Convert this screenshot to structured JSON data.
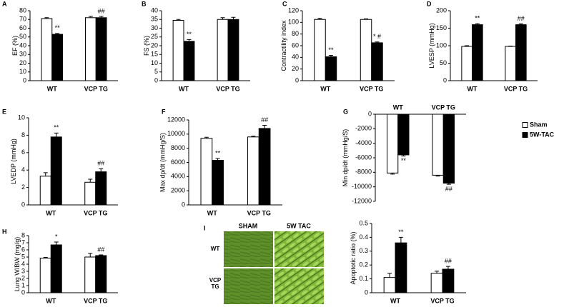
{
  "chart_data": [
    {
      "type": "bar",
      "label": "A",
      "ylabel": "EF (%)",
      "categories": [
        "WT",
        "VCP TG"
      ],
      "ylim": [
        0,
        80
      ],
      "yticks": [
        0,
        10,
        20,
        30,
        40,
        50,
        60,
        70,
        80
      ],
      "series": [
        {
          "color": "#ffffff",
          "values": [
            71,
            72
          ],
          "errors": [
            1,
            1.5
          ]
        },
        {
          "color": "#000000",
          "values": [
            53,
            72
          ],
          "errors": [
            1,
            1.5
          ],
          "annotations": [
            "**",
            "##"
          ]
        }
      ]
    },
    {
      "type": "bar",
      "label": "B",
      "ylabel": "FS (%)",
      "categories": [
        "WT",
        "VCP TG"
      ],
      "ylim": [
        0,
        40
      ],
      "yticks": [
        0,
        5,
        10,
        15,
        20,
        25,
        30,
        35,
        40
      ],
      "series": [
        {
          "color": "#ffffff",
          "values": [
            34.5,
            35
          ],
          "errors": [
            0.5,
            1
          ]
        },
        {
          "color": "#000000",
          "values": [
            22.5,
            35
          ],
          "errors": [
            1,
            1.2
          ],
          "annotations": [
            "**",
            null
          ]
        }
      ]
    },
    {
      "type": "bar",
      "label": "C",
      "ylabel": "Contractility index",
      "categories": [
        "WT",
        "VCP TG"
      ],
      "ylim": [
        0,
        120
      ],
      "yticks": [
        0,
        20,
        40,
        60,
        80,
        100,
        120
      ],
      "series": [
        {
          "color": "#ffffff",
          "values": [
            105,
            105
          ],
          "errors": [
            2,
            1
          ]
        },
        {
          "color": "#000000",
          "values": [
            41,
            65
          ],
          "errors": [
            2.5,
            1.5
          ],
          "annotations": [
            "**",
            "* #"
          ]
        }
      ]
    },
    {
      "type": "bar",
      "label": "D",
      "ylabel": "LVESP (mmHg)",
      "categories": [
        "WT",
        "VCP TG"
      ],
      "ylim": [
        0,
        200
      ],
      "yticks": [
        0,
        50,
        100,
        150,
        200
      ],
      "series": [
        {
          "color": "#ffffff",
          "values": [
            98,
            98
          ],
          "errors": [
            2,
            1
          ]
        },
        {
          "color": "#000000",
          "values": [
            160,
            160
          ],
          "errors": [
            3,
            2.5
          ],
          "annotations": [
            "**",
            "##"
          ]
        }
      ]
    },
    {
      "type": "bar",
      "label": "E",
      "ylabel": "LVEDP (mmHg)",
      "categories": [
        "WT",
        "VCP TG"
      ],
      "ylim": [
        0,
        10
      ],
      "yticks": [
        0,
        2,
        4,
        6,
        8,
        10
      ],
      "series": [
        {
          "color": "#ffffff",
          "values": [
            3.3,
            2.6
          ],
          "errors": [
            0.4,
            0.35
          ]
        },
        {
          "color": "#000000",
          "values": [
            7.8,
            3.8
          ],
          "errors": [
            0.45,
            0.35
          ],
          "annotations": [
            "**",
            "##"
          ]
        }
      ]
    },
    {
      "type": "bar",
      "label": "F",
      "ylabel": "Max dp/dt (mmHg/S)",
      "categories": [
        "WT",
        "VCP TG"
      ],
      "ylim": [
        0,
        12000
      ],
      "yticks": [
        0,
        2000,
        4000,
        6000,
        8000,
        10000,
        12000
      ],
      "series": [
        {
          "color": "#ffffff",
          "values": [
            9400,
            9600
          ],
          "errors": [
            150,
            100
          ]
        },
        {
          "color": "#000000",
          "values": [
            6300,
            10800
          ],
          "errors": [
            250,
            450
          ],
          "annotations": [
            "**",
            "##"
          ]
        }
      ]
    },
    {
      "type": "bar",
      "label": "G",
      "ylabel": "Min dp/dt (mmHg/S)",
      "categories": [
        "WT",
        "VCP TG"
      ],
      "ylim": [
        -12000,
        0
      ],
      "yticks": [
        0,
        -2000,
        -4000,
        -6000,
        -8000,
        -10000,
        -12000
      ],
      "legend": "right",
      "series": [
        {
          "name": "Sham",
          "color": "#ffffff",
          "values": [
            -8100,
            -8400
          ],
          "errors": [
            150,
            120
          ]
        },
        {
          "name": "5W-TAC",
          "color": "#000000",
          "values": [
            -5600,
            -9500
          ],
          "errors": [
            150,
            150
          ],
          "annotations": [
            "**",
            "##"
          ]
        }
      ]
    },
    {
      "type": "bar",
      "label": "H",
      "ylabel": "Lung W/BW (mg/g)",
      "categories": [
        "WT",
        "VCP TG"
      ],
      "ylim": [
        0,
        8
      ],
      "yticks": [
        0,
        1,
        2,
        3,
        4,
        5,
        6,
        7,
        8
      ],
      "series": [
        {
          "color": "#ffffff",
          "values": [
            4.85,
            5.0
          ],
          "errors": [
            0.1,
            0.5
          ]
        },
        {
          "color": "#000000",
          "values": [
            6.7,
            5.2
          ],
          "errors": [
            0.4,
            0.1
          ],
          "annotations": [
            "*",
            "##"
          ]
        }
      ]
    },
    {
      "type": "bar",
      "ylabel": "Apoptotic ratio (%)",
      "categories": [
        "WT",
        "VCP TG"
      ],
      "ylim": [
        0,
        0.5
      ],
      "yticks": [
        0,
        0.1,
        0.2,
        0.3,
        0.4,
        0.5
      ],
      "series": [
        {
          "color": "#ffffff",
          "values": [
            0.11,
            0.14
          ],
          "errors": [
            0.03,
            0.015
          ]
        },
        {
          "color": "#000000",
          "values": [
            0.36,
            0.17
          ],
          "errors": [
            0.04,
            0.02
          ],
          "annotations": [
            "**",
            "##"
          ]
        }
      ]
    }
  ],
  "micrograph": {
    "label": "I",
    "columns": [
      "SHAM",
      "5W TAC"
    ],
    "rows": [
      "WT",
      "VCP TG"
    ]
  }
}
